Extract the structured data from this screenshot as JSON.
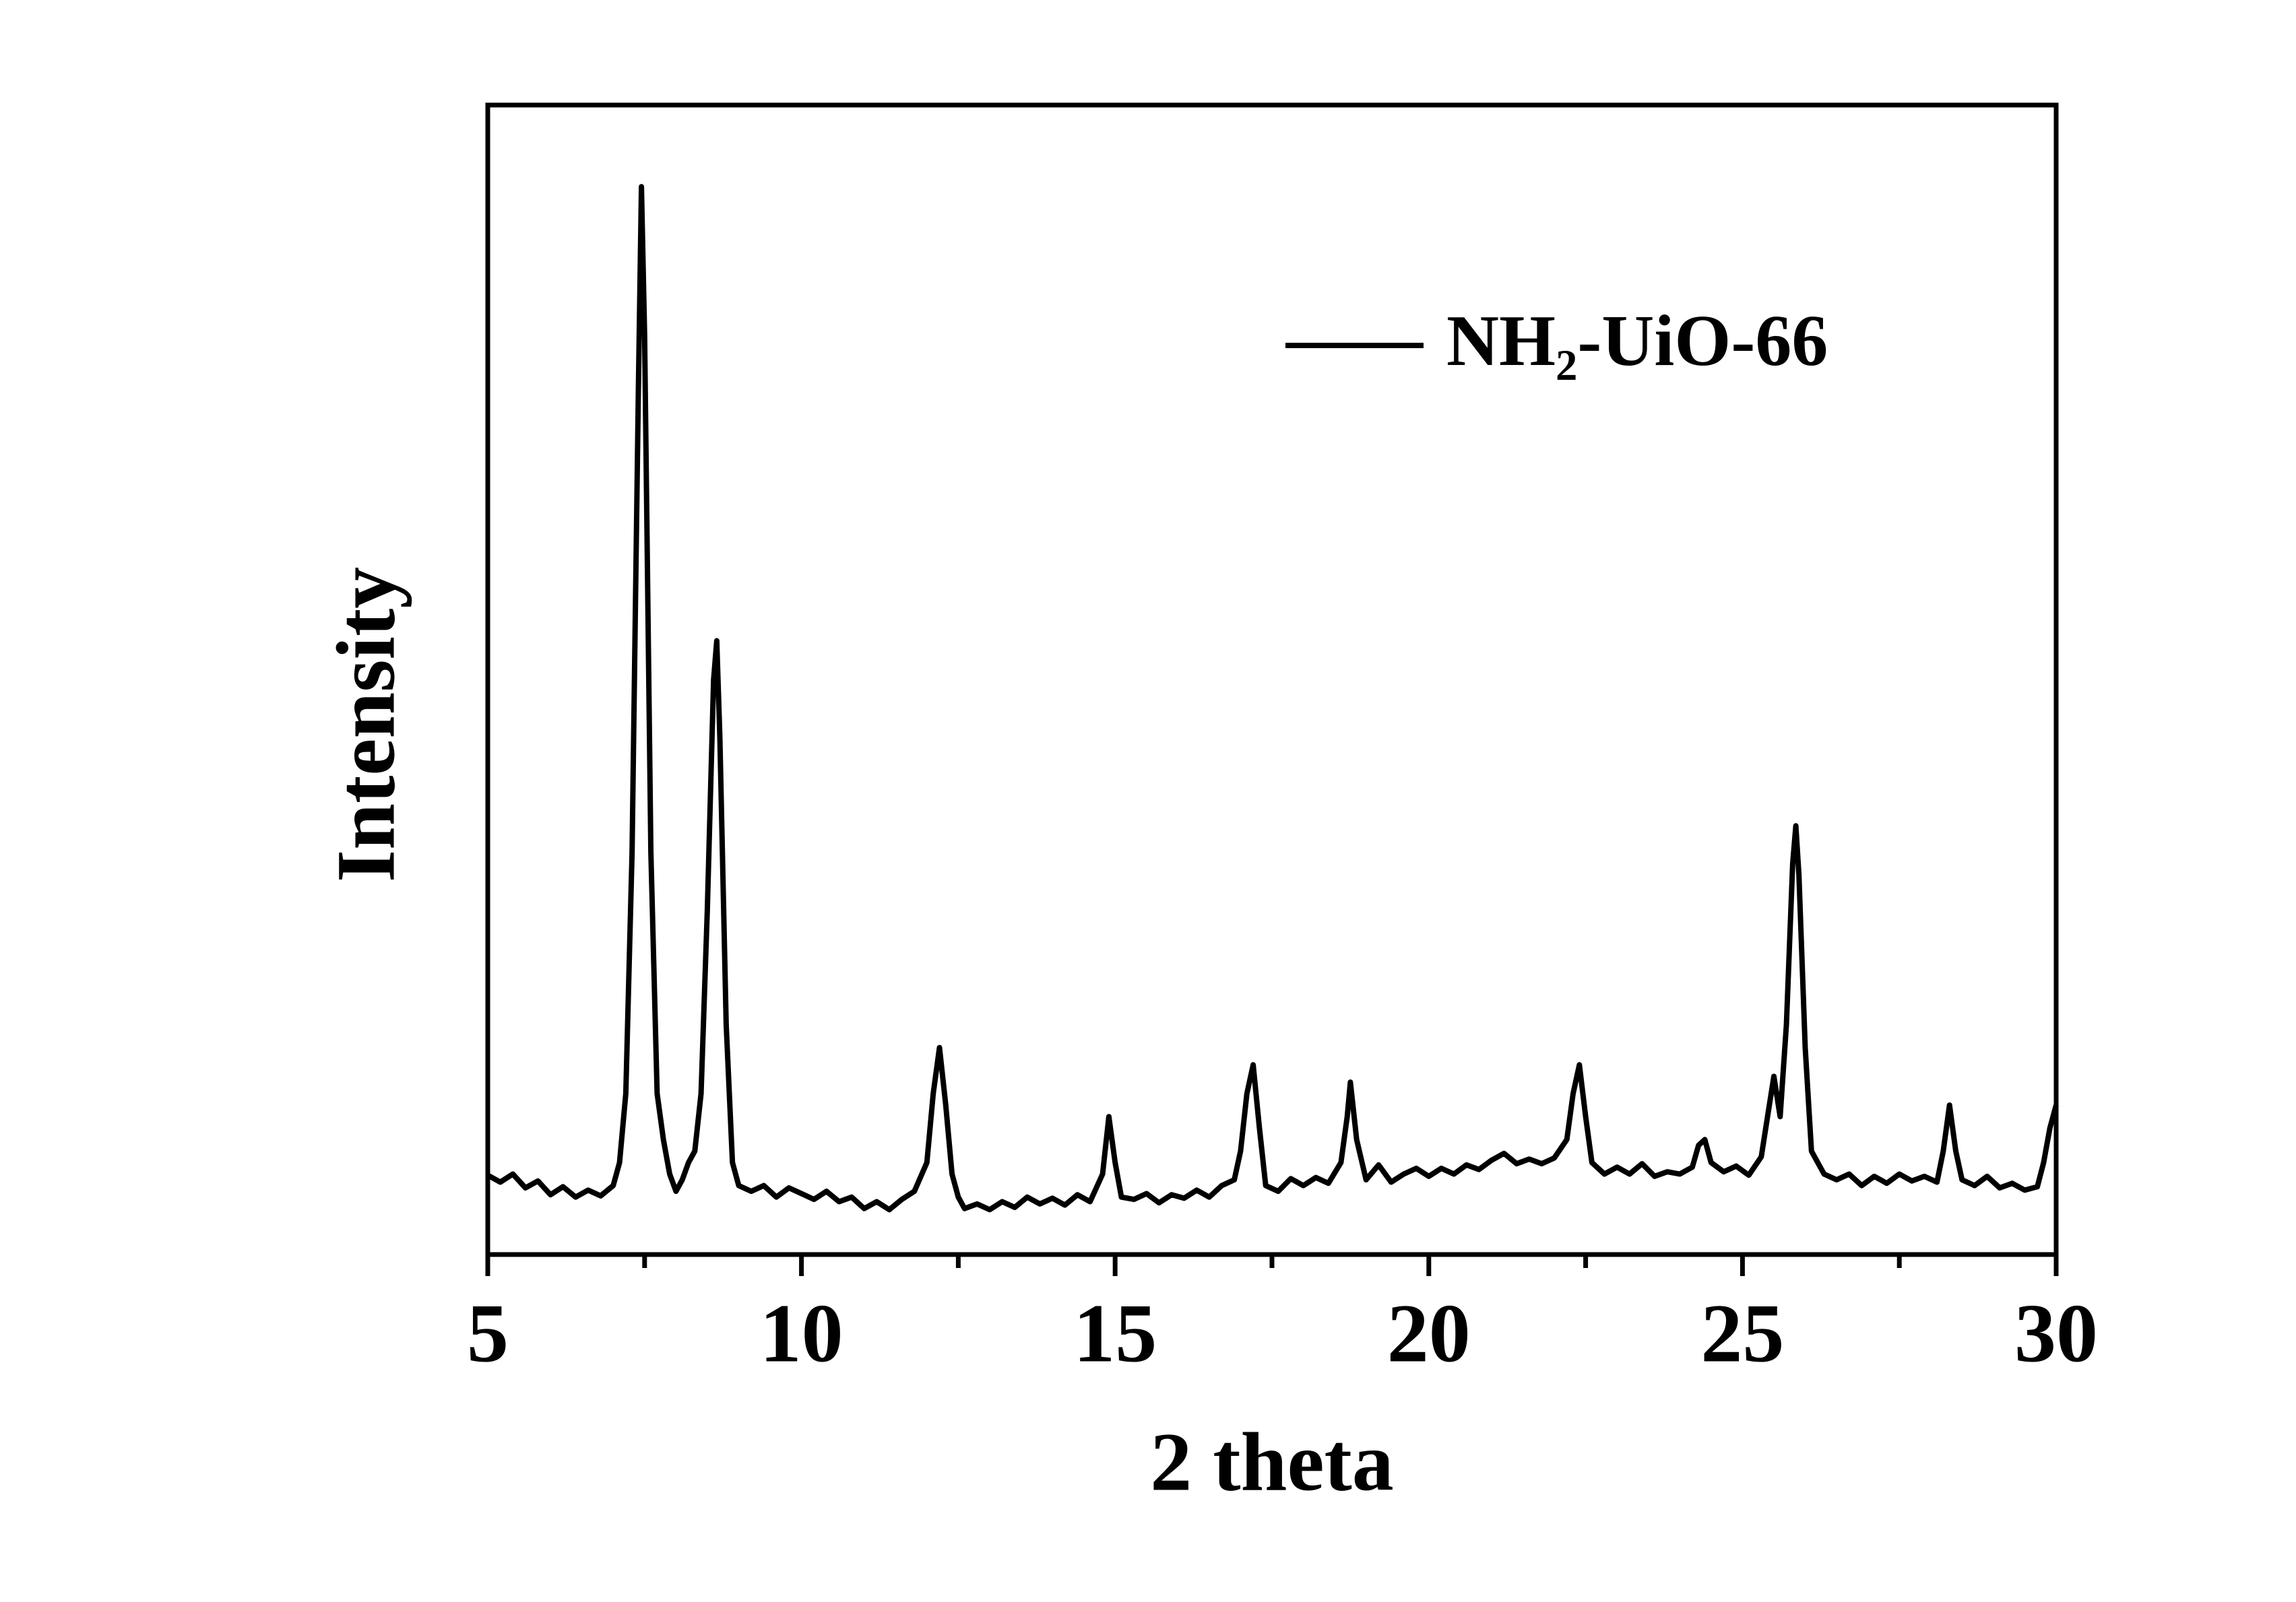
{
  "chart_data": {
    "type": "line",
    "xlabel": "2 theta",
    "ylabel": "Intensity",
    "xlim": [
      5,
      30
    ],
    "ylim": [
      0,
      100
    ],
    "xticks": [
      5,
      10,
      15,
      20,
      25,
      30
    ],
    "xticks_minor": [
      7.5,
      12.5,
      17.5,
      22.5,
      27.5
    ],
    "legend": "upper right",
    "x": [
      5.0,
      5.2,
      5.4,
      5.6,
      5.8,
      6.0,
      6.2,
      6.4,
      6.6,
      6.8,
      7.0,
      7.1,
      7.2,
      7.3,
      7.4,
      7.45,
      7.5,
      7.6,
      7.7,
      7.8,
      7.9,
      8.0,
      8.1,
      8.2,
      8.3,
      8.4,
      8.5,
      8.6,
      8.65,
      8.7,
      8.8,
      8.9,
      9.0,
      9.2,
      9.4,
      9.6,
      9.8,
      10.0,
      10.2,
      10.4,
      10.6,
      10.8,
      11.0,
      11.2,
      11.4,
      11.6,
      11.8,
      12.0,
      12.1,
      12.2,
      12.3,
      12.4,
      12.5,
      12.6,
      12.8,
      13.0,
      13.2,
      13.4,
      13.6,
      13.8,
      14.0,
      14.2,
      14.4,
      14.6,
      14.8,
      14.9,
      15.0,
      15.1,
      15.3,
      15.5,
      15.7,
      15.9,
      16.1,
      16.3,
      16.5,
      16.7,
      16.9,
      17.0,
      17.1,
      17.2,
      17.3,
      17.4,
      17.6,
      17.8,
      18.0,
      18.2,
      18.4,
      18.6,
      18.7,
      18.75,
      18.85,
      19.0,
      19.2,
      19.4,
      19.6,
      19.8,
      20.0,
      20.2,
      20.4,
      20.6,
      20.8,
      21.0,
      21.2,
      21.4,
      21.6,
      21.8,
      22.0,
      22.2,
      22.3,
      22.4,
      22.5,
      22.6,
      22.8,
      23.0,
      23.2,
      23.4,
      23.6,
      23.8,
      24.0,
      24.2,
      24.3,
      24.4,
      24.5,
      24.7,
      24.9,
      25.1,
      25.3,
      25.4,
      25.5,
      25.6,
      25.7,
      25.8,
      25.85,
      25.9,
      26.0,
      26.1,
      26.3,
      26.5,
      26.7,
      26.9,
      27.1,
      27.3,
      27.5,
      27.7,
      27.9,
      28.1,
      28.2,
      28.3,
      28.4,
      28.5,
      28.7,
      28.9,
      29.1,
      29.3,
      29.5,
      29.7,
      29.8,
      29.9,
      30.0
    ],
    "series": [
      {
        "name": "NH₂-UiO-66",
        "color": "#000000",
        "values": [
          6.9,
          6.3,
          7.0,
          5.8,
          6.4,
          5.2,
          5.9,
          5.0,
          5.6,
          5.1,
          6.0,
          8,
          14,
          35,
          75,
          92.9,
          80,
          35,
          14,
          10,
          7,
          5.5,
          6.5,
          8,
          9,
          14,
          30,
          50,
          53.4,
          45,
          20,
          8,
          6,
          5.5,
          6,
          5.0,
          5.8,
          5.3,
          4.8,
          5.5,
          4.6,
          5.0,
          4.0,
          4.6,
          3.9,
          4.8,
          5.5,
          8,
          14,
          18,
          13,
          7,
          5,
          4.0,
          4.4,
          3.9,
          4.6,
          4.1,
          5.0,
          4.4,
          4.9,
          4.3,
          5.2,
          4.6,
          7,
          12,
          8,
          5,
          4.8,
          5.3,
          4.5,
          5.2,
          4.9,
          5.6,
          5.0,
          6.0,
          6.5,
          9,
          14,
          16.5,
          11,
          6,
          5.5,
          6.6,
          6.0,
          6.7,
          6.2,
          8,
          12,
          15,
          10,
          6.5,
          7.8,
          6.3,
          7.0,
          7.5,
          6.8,
          7.5,
          7.0,
          7.8,
          7.4,
          8.2,
          8.8,
          7.9,
          8.3,
          7.9,
          8.4,
          10,
          14,
          16.5,
          12,
          8,
          7.0,
          7.6,
          7.0,
          7.9,
          6.8,
          7.2,
          7.0,
          7.6,
          9.5,
          10,
          8,
          7.2,
          7.7,
          6.9,
          8.5,
          12,
          15.5,
          12,
          20,
          34,
          37.3,
          33,
          18,
          9,
          7.0,
          6.5,
          7.0,
          6.0,
          6.8,
          6.2,
          7.0,
          6.4,
          6.8,
          6.3,
          9,
          13,
          9,
          6.5,
          6.0,
          6.8,
          5.8,
          6.2,
          5.6,
          5.9,
          8,
          11,
          13
        ]
      }
    ]
  }
}
